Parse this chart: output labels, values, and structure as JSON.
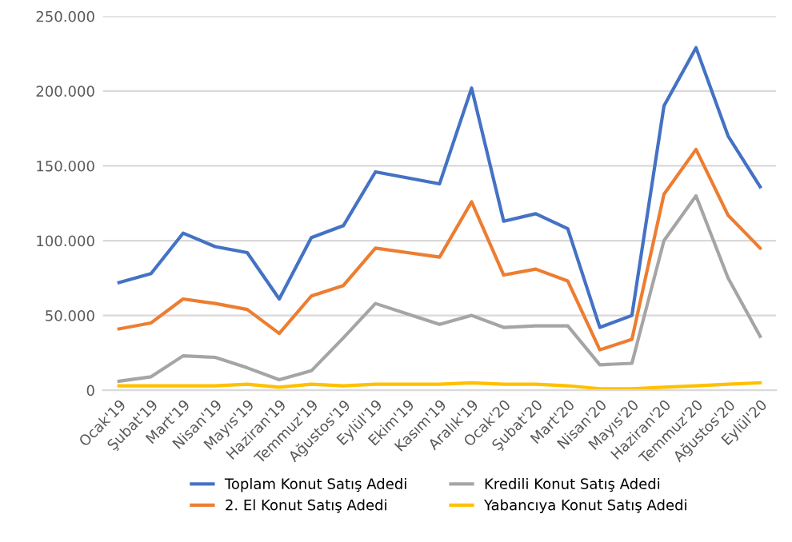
{
  "chart_data": {
    "type": "line",
    "categories": [
      "Ocak'19",
      "Şubat'19",
      "Mart'19",
      "Nisan'19",
      "Mayıs'19",
      "Haziran'19",
      "Temmuz'19",
      "Ağustos'19",
      "Eylül'19",
      "Ekim'19",
      "Kasım'19",
      "Aralık'19",
      "Ocak'20",
      "Şubat'20",
      "Mart'20",
      "Nisan'20",
      "Mayıs'20",
      "Haziran'20",
      "Temmuz'20",
      "Ağustos'20",
      "Eylül'20"
    ],
    "series": [
      {
        "name": "Toplam Konut Satış Adedi",
        "color": "#4472c4",
        "values": [
          72000,
          78000,
          105000,
          96000,
          92000,
          61000,
          102000,
          110000,
          146000,
          142000,
          138000,
          202000,
          113000,
          118000,
          108000,
          42000,
          50000,
          190000,
          229000,
          170000,
          136000
        ]
      },
      {
        "name": "2. El Konut Satış Adedi",
        "color": "#ed7d31",
        "values": [
          41000,
          45000,
          61000,
          58000,
          54000,
          38000,
          63000,
          70000,
          95000,
          92000,
          89000,
          126000,
          77000,
          81000,
          73000,
          27000,
          34000,
          131000,
          161000,
          117000,
          95000
        ]
      },
      {
        "name": "Kredili Konut Satış Adedi",
        "color": "#a5a5a5",
        "values": [
          6000,
          9000,
          23000,
          22000,
          15000,
          7000,
          13000,
          35000,
          58000,
          51000,
          44000,
          50000,
          42000,
          43000,
          43000,
          17000,
          18000,
          100000,
          130000,
          75000,
          36000
        ]
      },
      {
        "name": "Yabancıya Konut Satış Adedi",
        "color": "#ffc000",
        "values": [
          3000,
          3000,
          3000,
          3000,
          4000,
          2000,
          4000,
          3000,
          4000,
          4000,
          4000,
          5000,
          4000,
          4000,
          3000,
          1000,
          1000,
          2000,
          3000,
          4000,
          5000
        ]
      }
    ],
    "ylim": [
      0,
      250000
    ],
    "yticks": [
      {
        "value": 0,
        "label": "0"
      },
      {
        "value": 50000,
        "label": "50.000"
      },
      {
        "value": 100000,
        "label": "100.000"
      },
      {
        "value": 150000,
        "label": "150.000"
      },
      {
        "value": 200000,
        "label": "200.000"
      },
      {
        "value": 250000,
        "label": "250.000"
      }
    ],
    "grid": "y",
    "legend": "bottom",
    "marker": "none",
    "line_style": "solid"
  }
}
